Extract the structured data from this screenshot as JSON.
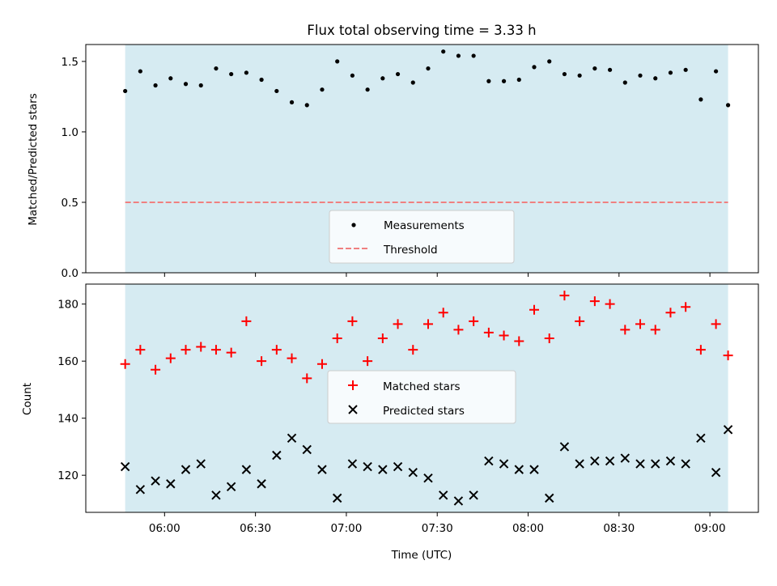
{
  "title": "Flux total observing time = 3.33 h",
  "colors": {
    "band": "#add8e6",
    "measurement": "#000000",
    "threshold": "#f08080",
    "matched": "#ff0000",
    "predicted": "#000000"
  },
  "chart_data": [
    {
      "type": "scatter",
      "title": "Flux total observing time = 3.33 h",
      "xlabel": "",
      "ylabel": "Matched/Predicted stars",
      "x_axis": "time of day (UTC)",
      "xlim": [
        "05:34",
        "09:16"
      ],
      "ylim": [
        0,
        1.62
      ],
      "yticks": [
        0.0,
        0.5,
        1.0,
        1.5
      ],
      "ytick_labels": [
        "0.0",
        "0.5",
        "1.0",
        "1.5"
      ],
      "shaded_span": [
        "05:47",
        "09:06"
      ],
      "threshold": 0.5,
      "legend": {
        "position": "lower center",
        "entries": [
          "Measurements",
          "Threshold"
        ]
      },
      "x": [
        "05:47",
        "05:52",
        "05:57",
        "06:02",
        "06:07",
        "06:12",
        "06:17",
        "06:22",
        "06:27",
        "06:32",
        "06:37",
        "06:42",
        "06:47",
        "06:52",
        "06:57",
        "07:02",
        "07:07",
        "07:12",
        "07:17",
        "07:22",
        "07:27",
        "07:32",
        "07:37",
        "07:42",
        "07:47",
        "07:52",
        "07:57",
        "08:02",
        "08:07",
        "08:12",
        "08:17",
        "08:22",
        "08:27",
        "08:32",
        "08:37",
        "08:42",
        "08:47",
        "08:52",
        "08:57",
        "09:02",
        "09:06"
      ],
      "series": [
        {
          "name": "Measurements",
          "values": [
            1.29,
            1.43,
            1.33,
            1.38,
            1.34,
            1.33,
            1.45,
            1.41,
            1.42,
            1.37,
            1.29,
            1.21,
            1.19,
            1.3,
            1.5,
            1.4,
            1.3,
            1.38,
            1.41,
            1.35,
            1.45,
            1.57,
            1.54,
            1.54,
            1.36,
            1.36,
            1.37,
            1.46,
            1.5,
            1.41,
            1.4,
            1.45,
            1.44,
            1.35,
            1.4,
            1.38,
            1.42,
            1.44,
            1.23,
            1.43,
            1.19
          ]
        },
        {
          "name": "Threshold",
          "values": [
            0.5,
            0.5
          ]
        }
      ]
    },
    {
      "type": "scatter",
      "xlabel": "Time (UTC)",
      "ylabel": "Count",
      "xlim": [
        "05:34",
        "09:16"
      ],
      "ylim": [
        107,
        187
      ],
      "xticks": [
        "06:00",
        "06:30",
        "07:00",
        "07:30",
        "08:00",
        "08:30",
        "09:00"
      ],
      "yticks": [
        120,
        140,
        160,
        180
      ],
      "shaded_span": [
        "05:47",
        "09:06"
      ],
      "legend": {
        "position": "center",
        "entries": [
          "Matched stars",
          "Predicted stars"
        ]
      },
      "x": [
        "05:47",
        "05:52",
        "05:57",
        "06:02",
        "06:07",
        "06:12",
        "06:17",
        "06:22",
        "06:27",
        "06:32",
        "06:37",
        "06:42",
        "06:47",
        "06:52",
        "06:57",
        "07:02",
        "07:07",
        "07:12",
        "07:17",
        "07:22",
        "07:27",
        "07:32",
        "07:37",
        "07:42",
        "07:47",
        "07:52",
        "07:57",
        "08:02",
        "08:07",
        "08:12",
        "08:17",
        "08:22",
        "08:27",
        "08:32",
        "08:37",
        "08:42",
        "08:47",
        "08:52",
        "08:57",
        "09:02",
        "09:06"
      ],
      "series": [
        {
          "name": "Matched stars",
          "values": [
            159,
            164,
            157,
            161,
            164,
            165,
            164,
            163,
            174,
            160,
            164,
            161,
            154,
            159,
            168,
            174,
            160,
            168,
            173,
            164,
            173,
            177,
            171,
            174,
            170,
            169,
            167,
            178,
            168,
            183,
            174,
            181,
            180,
            171,
            173,
            171,
            177,
            179,
            164,
            173,
            162
          ]
        },
        {
          "name": "Predicted stars",
          "values": [
            123,
            115,
            118,
            117,
            122,
            124,
            113,
            116,
            122,
            117,
            127,
            133,
            129,
            122,
            112,
            124,
            123,
            122,
            123,
            121,
            119,
            113,
            111,
            113,
            125,
            124,
            122,
            122,
            112,
            130,
            124,
            125,
            125,
            126,
            124,
            124,
            125,
            124,
            133,
            121,
            136
          ]
        }
      ]
    }
  ]
}
